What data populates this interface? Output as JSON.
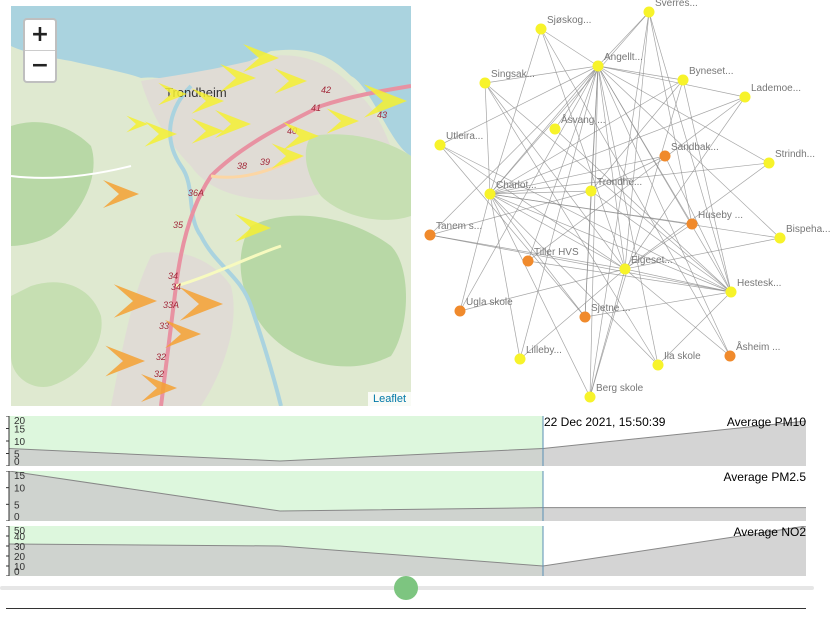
{
  "map": {
    "zoom_in": "+",
    "zoom_out": "−",
    "attribution": "Leaflet",
    "city_label": "Trondheim",
    "road_labels": [
      "42",
      "41",
      "43",
      "40",
      "39",
      "38",
      "36A",
      "35",
      "34",
      "34",
      "33A",
      "33",
      "32",
      "32"
    ],
    "colors": {
      "water": "#aad3df",
      "land": "#dfe9d0",
      "urban": "#e0dcd5",
      "forest": "#b8d8a6",
      "motorway": "#e892a2",
      "yellow_marker": "#f5f032",
      "orange_marker": "#f5a132"
    }
  },
  "graph": {
    "nodes": [
      {
        "label": "Sjøskog...",
        "color": "yellow"
      },
      {
        "label": "Sverres...",
        "color": "yellow"
      },
      {
        "label": "Angellt...",
        "color": "yellow"
      },
      {
        "label": "Byneset...",
        "color": "yellow"
      },
      {
        "label": "Singsak...",
        "color": "yellow"
      },
      {
        "label": "Lademoe...",
        "color": "yellow"
      },
      {
        "label": "Åsvang ...",
        "color": "yellow"
      },
      {
        "label": "Utleira...",
        "color": "yellow"
      },
      {
        "label": "Sandbak...",
        "color": "orange"
      },
      {
        "label": "Strindh...",
        "color": "yellow"
      },
      {
        "label": "Charlot...",
        "color": "yellow"
      },
      {
        "label": "Trondhe...",
        "color": "yellow"
      },
      {
        "label": "Huseby ...",
        "color": "orange"
      },
      {
        "label": "Tanem s...",
        "color": "orange"
      },
      {
        "label": "Bispeha...",
        "color": "yellow"
      },
      {
        "label": "Tiller HVS",
        "color": "orange"
      },
      {
        "label": "Elgeset...",
        "color": "yellow"
      },
      {
        "label": "Hestesk...",
        "color": "yellow"
      },
      {
        "label": "Ugla skole",
        "color": "orange"
      },
      {
        "label": "Sjetne ...",
        "color": "orange"
      },
      {
        "label": "Lilleby...",
        "color": "yellow"
      },
      {
        "label": "Åsheim ...",
        "color": "orange"
      },
      {
        "label": "Ila skole",
        "color": "yellow"
      },
      {
        "label": "Berg skole",
        "color": "yellow"
      }
    ],
    "colors": {
      "yellow": "#f7f32a",
      "orange": "#f08a2c",
      "edge": "#888888",
      "label": "#777777"
    }
  },
  "timeline": {
    "date_label": "22 Dec 2021, 15:50:39",
    "charts": [
      {
        "title": "Average PM10",
        "ticks": [
          0,
          5,
          10,
          15,
          20
        ],
        "ymax": 20,
        "x": [
          0,
          0.34,
          0.67,
          1
        ],
        "values": [
          7,
          2,
          7,
          18
        ]
      },
      {
        "title": "Average PM2.5",
        "ticks": [
          0,
          5,
          10,
          15
        ],
        "ymax": 15,
        "x": [
          0,
          0.34,
          0.67,
          1
        ],
        "values": [
          15,
          3,
          4,
          4
        ]
      },
      {
        "title": "Average NO2",
        "ticks": [
          0,
          10,
          20,
          30,
          40,
          50
        ],
        "ymax": 50,
        "x": [
          0,
          0.34,
          0.67,
          1
        ],
        "values": [
          32,
          30,
          10,
          50
        ]
      }
    ],
    "cursor_fraction": 0.67,
    "slider_fraction": 0.5,
    "colors": {
      "past_fill": "#ddf7dd",
      "area_fill": "#cccccc",
      "line": "#888888",
      "cursor": "#5a8fb5",
      "thumb": "#7dc580"
    }
  }
}
